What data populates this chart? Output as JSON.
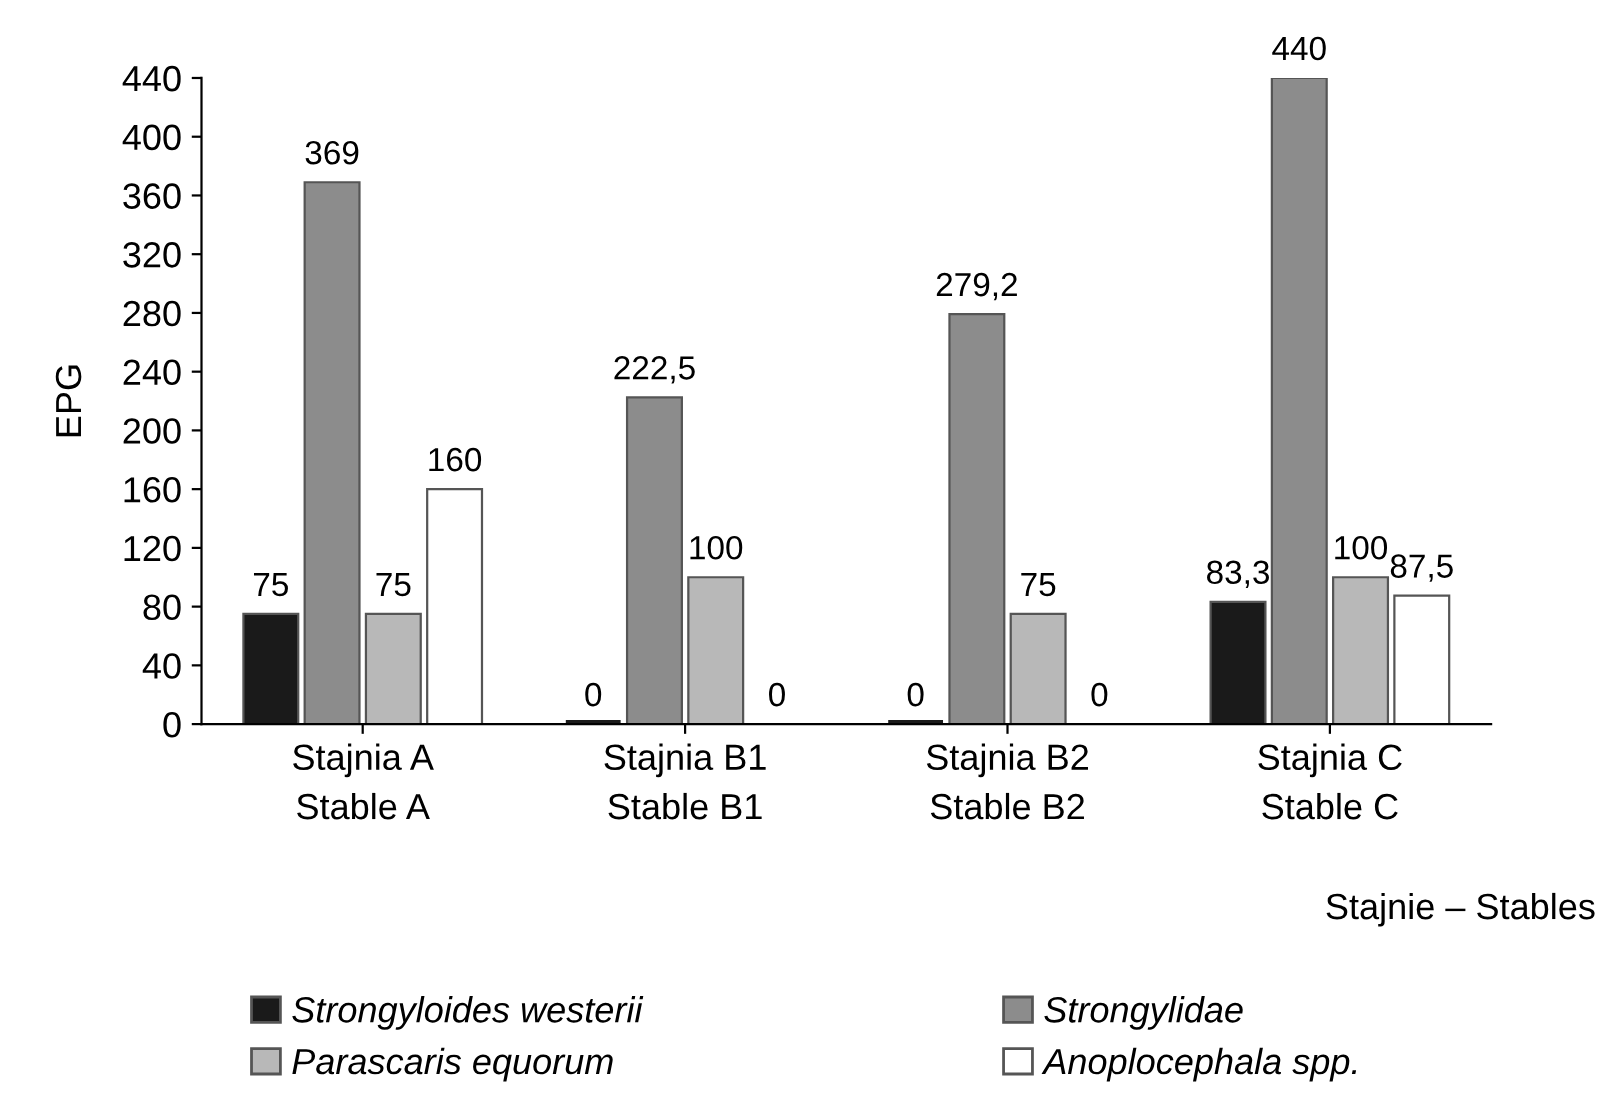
{
  "chart_data": {
    "type": "bar",
    "ylabel": "EPG",
    "xlabel": "Stajnie – Stables",
    "categories": [
      "Stajnia A\nStable A",
      "Stajnia B1\nStable B1",
      "Stajnia B2\nStable B2",
      "Stajnia C\nStable C"
    ],
    "series": [
      {
        "name": "Strongyloides westerii",
        "color": "#1a1a1a",
        "values": [
          75,
          0,
          0,
          83.3
        ],
        "value_labels": [
          "75",
          "0",
          "0",
          "83,3"
        ]
      },
      {
        "name": "Strongylidae",
        "color": "#8c8c8c",
        "values": [
          369,
          222.5,
          279.2,
          440
        ],
        "value_labels": [
          "369",
          "222,5",
          "279,2",
          "440"
        ]
      },
      {
        "name": "Parascaris equorum",
        "color": "#b8b8b8",
        "values": [
          75,
          100,
          75,
          100
        ],
        "value_labels": [
          "75",
          "100",
          "75",
          "100"
        ]
      },
      {
        "name": "Anoplocephala spp.",
        "color": "#ffffff",
        "values": [
          160,
          0,
          0,
          87.5
        ],
        "value_labels": [
          "160",
          "0",
          "0",
          "87,5"
        ]
      }
    ],
    "ylim": [
      0,
      440
    ],
    "yticks": [
      0,
      40,
      80,
      120,
      160,
      200,
      240,
      280,
      320,
      360,
      400,
      440
    ],
    "grid": false,
    "legend": "bottom"
  }
}
